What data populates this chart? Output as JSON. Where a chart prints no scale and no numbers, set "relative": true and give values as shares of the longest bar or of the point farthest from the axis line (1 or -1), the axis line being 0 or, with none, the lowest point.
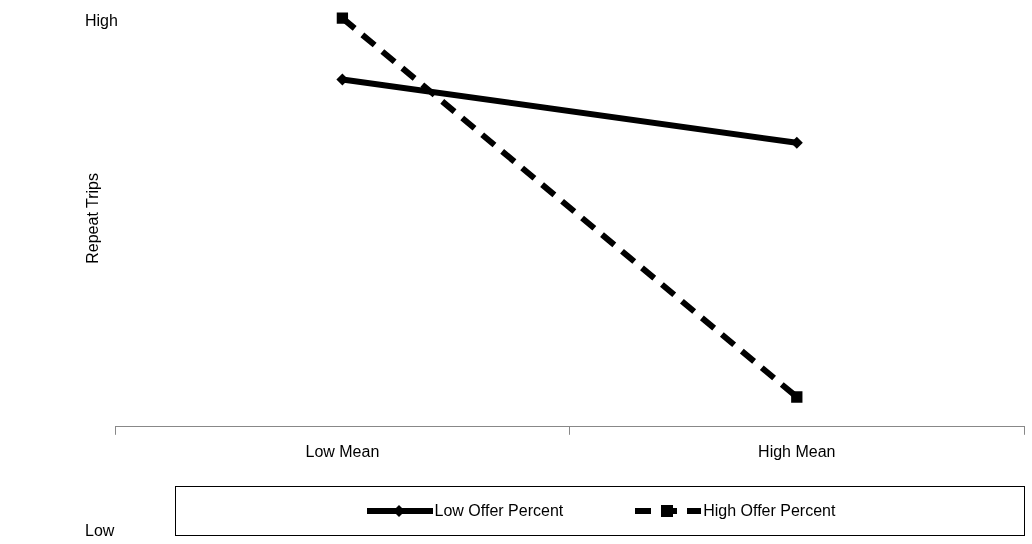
{
  "chart_data": {
    "type": "line",
    "ylabel": "Repeat Trips",
    "relative": true,
    "categories": [
      "Low Mean",
      "High Mean"
    ],
    "series": [
      {
        "name": "Low Offer Percent",
        "color": "#000000",
        "values": [
          0.85,
          0.695
        ],
        "marker": "diamond",
        "line_style": "solid"
      },
      {
        "name": "High Offer Percent",
        "color": "#000000",
        "values": [
          1.0,
          0.073
        ],
        "marker": "square",
        "line_style": "dashed"
      }
    ],
    "annotations": [
      "High",
      "Low"
    ],
    "legend": "bottom",
    "grid": false
  }
}
